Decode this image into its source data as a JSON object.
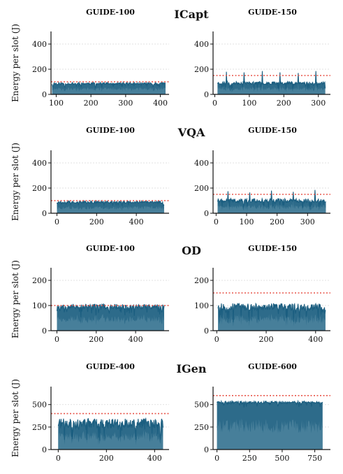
{
  "chart_data": [
    {
      "row_title": "ICapt",
      "panels": [
        {
          "title": "GUIDE-100",
          "type": "area",
          "ylabel": "Energy per slot (J)",
          "xlim": [
            85,
            425
          ],
          "ylim": [
            0,
            500
          ],
          "xticks": [
            100,
            200,
            300,
            400
          ],
          "yticks": [
            0,
            200,
            400
          ],
          "budget": 100,
          "x_range": [
            88,
            415
          ],
          "mean": 86,
          "noise": 9,
          "spike_heights": [],
          "seed": 11
        },
        {
          "title": "GUIDE-150",
          "type": "area",
          "ylabel": "",
          "xlim": [
            -5,
            335
          ],
          "ylim": [
            0,
            500
          ],
          "xticks": [
            0,
            100,
            200,
            300
          ],
          "yticks": [
            0,
            200,
            400
          ],
          "budget": 150,
          "x_range": [
            8,
            320
          ],
          "mean": 90,
          "noise": 12,
          "spike_heights": [
            180,
            175,
            185,
            175,
            170,
            185
          ],
          "seed": 23
        }
      ]
    },
    {
      "row_title": "VQA",
      "panels": [
        {
          "title": "GUIDE-100",
          "type": "area",
          "ylabel": "Energy per slot (J)",
          "xlim": [
            -30,
            565
          ],
          "ylim": [
            0,
            500
          ],
          "xticks": [
            0,
            200,
            400
          ],
          "yticks": [
            0,
            200,
            400
          ],
          "budget": 100,
          "x_range": [
            0,
            540
          ],
          "mean": 88,
          "noise": 9,
          "spike_heights": [],
          "seed": 37
        },
        {
          "title": "GUIDE-150",
          "type": "area",
          "ylabel": "",
          "xlim": [
            -10,
            375
          ],
          "ylim": [
            0,
            500
          ],
          "xticks": [
            0,
            100,
            200,
            300
          ],
          "yticks": [
            0,
            200,
            400
          ],
          "budget": 150,
          "x_range": [
            5,
            360
          ],
          "mean": 100,
          "noise": 16,
          "spike_heights": [
            175,
            165,
            180,
            170,
            185
          ],
          "seed": 41
        }
      ]
    },
    {
      "row_title": "OD",
      "panels": [
        {
          "title": "GUIDE-100",
          "type": "area",
          "ylabel": "Energy per slot (J)",
          "xlim": [
            -30,
            570
          ],
          "ylim": [
            0,
            250
          ],
          "xticks": [
            0,
            200,
            400
          ],
          "yticks": [
            0,
            100,
            200
          ],
          "budget": 100,
          "x_range": [
            0,
            545
          ],
          "mean": 96,
          "noise": 10,
          "spike_heights": [],
          "seed": 53
        },
        {
          "title": "GUIDE-150",
          "type": "area",
          "ylabel": "",
          "xlim": [
            -15,
            460
          ],
          "ylim": [
            0,
            250
          ],
          "xticks": [
            0,
            200,
            400
          ],
          "yticks": [
            0,
            100,
            200
          ],
          "budget": 150,
          "x_range": [
            5,
            440
          ],
          "mean": 95,
          "noise": 14,
          "spike_heights": [],
          "seed": 67
        }
      ]
    },
    {
      "row_title": "IGen",
      "panels": [
        {
          "title": "GUIDE-400",
          "type": "area",
          "ylabel": "Energy per slot (J)",
          "xlim": [
            -30,
            460
          ],
          "ylim": [
            0,
            700
          ],
          "xticks": [
            0,
            200,
            400
          ],
          "yticks": [
            0,
            250,
            500
          ],
          "budget": 400,
          "x_range": [
            0,
            435
          ],
          "mean": 290,
          "noise": 55,
          "spike_heights": [],
          "seed": 71
        },
        {
          "title": "GUIDE-600",
          "type": "area",
          "ylabel": "",
          "xlim": [
            -30,
            870
          ],
          "ylim": [
            0,
            700
          ],
          "xticks": [
            0,
            250,
            500,
            750
          ],
          "yticks": [
            0,
            250,
            500
          ],
          "budget": 600,
          "x_range": [
            0,
            810
          ],
          "mean": 525,
          "noise": 14,
          "spike_heights": [],
          "seed": 89
        }
      ]
    }
  ],
  "colors": {
    "fill": "#1b5e80",
    "fill_light": "#5d8fa8",
    "line": "#1b5e80",
    "budget": "#e8554a",
    "grid": "#d9d9d9"
  }
}
